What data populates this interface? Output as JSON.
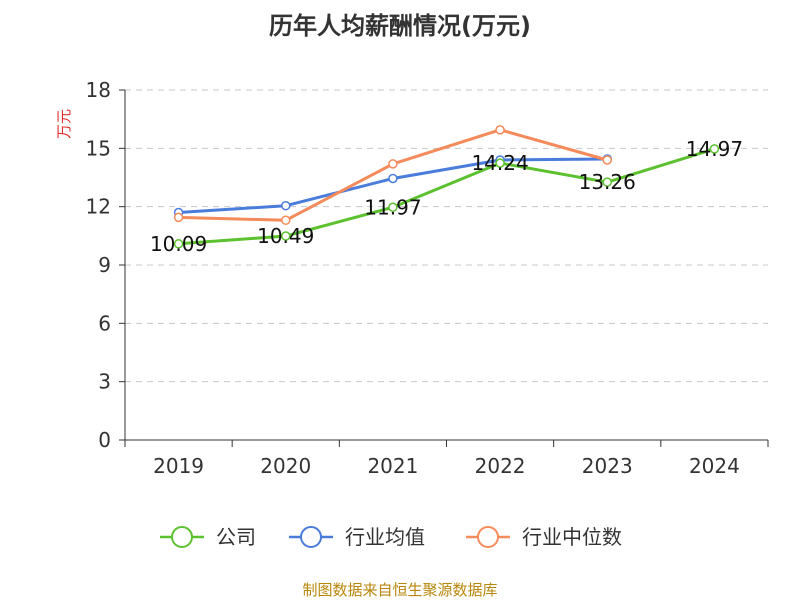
{
  "chart_data": {
    "type": "line",
    "title": "历年人均薪酬情况(万元)",
    "ylabel": "万元",
    "xlabel": "",
    "categories": [
      "2019",
      "2020",
      "2021",
      "2022",
      "2023",
      "2024"
    ],
    "ylim": [
      0,
      18
    ],
    "yticks": [
      "0",
      "3",
      "6",
      "9",
      "12",
      "15",
      "18"
    ],
    "grid": true,
    "legend_position": "bottom-center",
    "series": [
      {
        "name": "公司",
        "color": "#5cc12f",
        "values": [
          10.09,
          10.49,
          11.97,
          14.24,
          13.26,
          14.97
        ],
        "labels": [
          "10.09",
          "10.49",
          "11.97",
          "14.24",
          "13.26",
          "14.97"
        ]
      },
      {
        "name": "行业均值",
        "color": "#4a7cdb",
        "values": [
          11.7,
          12.05,
          13.45,
          14.4,
          14.45,
          null
        ]
      },
      {
        "name": "行业中位数",
        "color": "#f58a5b",
        "values": [
          11.45,
          11.3,
          14.2,
          15.95,
          14.4,
          null
        ]
      }
    ],
    "source": "制图数据来自恒生聚源数据库"
  }
}
